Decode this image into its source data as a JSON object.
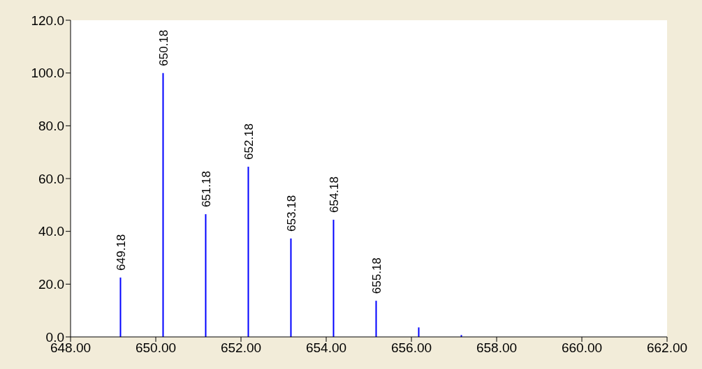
{
  "chart_data": {
    "type": "bar",
    "x": [
      649.18,
      650.18,
      651.18,
      652.18,
      653.18,
      654.18,
      655.18,
      656.18,
      657.18
    ],
    "values": [
      22.5,
      100,
      46.5,
      64.5,
      37.3,
      44.4,
      13.7,
      3.6,
      0.7
    ],
    "annotations": [
      {
        "text": "649.18",
        "x": 649.18,
        "y": 22.5
      },
      {
        "text": "650.18",
        "x": 650.18,
        "y": 100
      },
      {
        "text": "651.18",
        "x": 651.18,
        "y": 46.5
      },
      {
        "text": "652.18",
        "x": 652.18,
        "y": 64.5
      },
      {
        "text": "653.18",
        "x": 653.18,
        "y": 37.3
      },
      {
        "text": "654.18",
        "x": 654.18,
        "y": 44.4
      },
      {
        "text": "655.18",
        "x": 655.18,
        "y": 13.7
      }
    ],
    "color": "#0000ff",
    "xlim": [
      648,
      662
    ],
    "xticks": [
      {
        "value": 648,
        "label": "648.00"
      },
      {
        "value": 650,
        "label": "650.00"
      },
      {
        "value": 652,
        "label": "652.00"
      },
      {
        "value": 654,
        "label": "654.00"
      },
      {
        "value": 656,
        "label": "656.00"
      },
      {
        "value": 658,
        "label": "658.00"
      },
      {
        "value": 660,
        "label": "660.00"
      },
      {
        "value": 662,
        "label": "662.00"
      }
    ],
    "ylim": [
      0,
      120
    ],
    "yticks": [
      {
        "value": 0,
        "label": "0.0"
      },
      {
        "value": 20,
        "label": "20.0"
      },
      {
        "value": 40,
        "label": "40.0"
      },
      {
        "value": 60,
        "label": "60.0"
      },
      {
        "value": 80,
        "label": "80.0"
      },
      {
        "value": 100,
        "label": "100.0"
      },
      {
        "value": 120,
        "label": "120.0"
      }
    ],
    "grid": false,
    "legend": false
  }
}
